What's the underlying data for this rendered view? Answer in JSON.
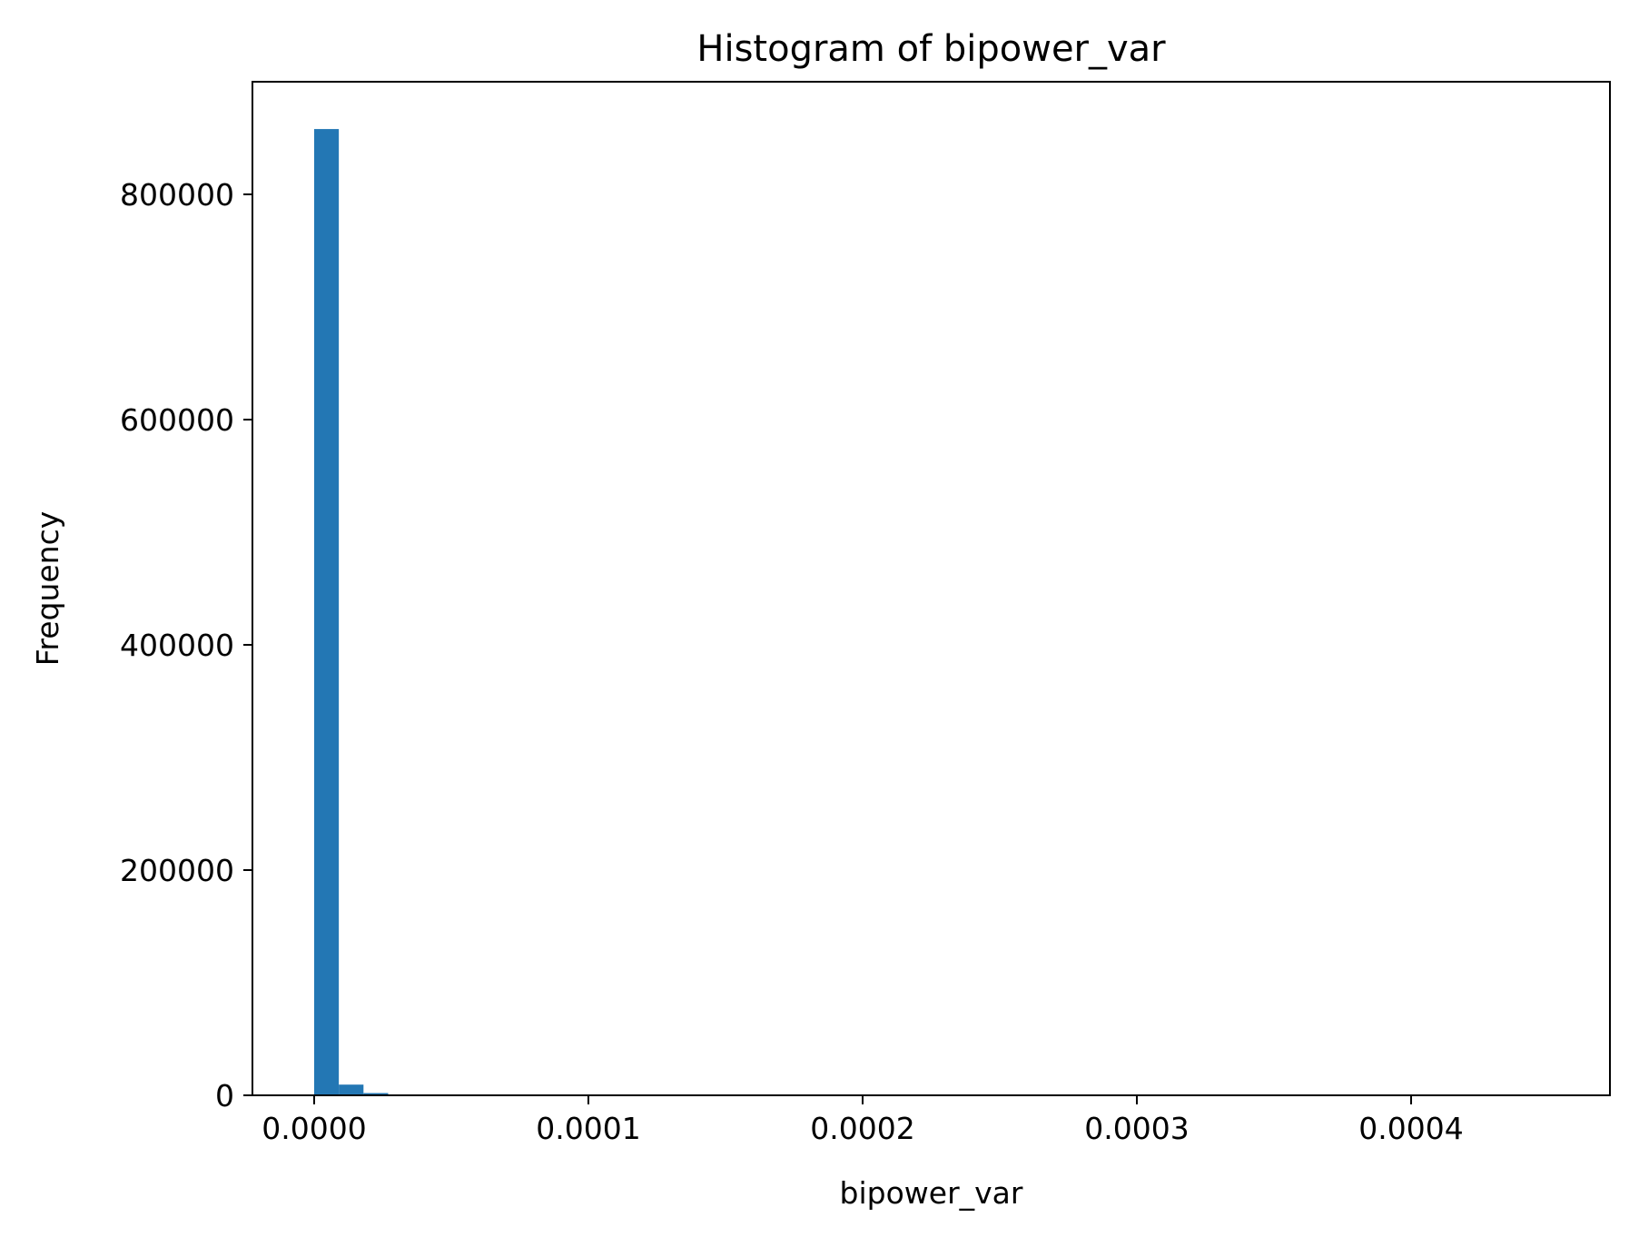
{
  "chart_data": {
    "type": "bar",
    "title": "Histogram of bipower_var",
    "xlabel": "bipower_var",
    "ylabel": "Frequency",
    "xlim": [
      -2.25e-05,
      0.0004725
    ],
    "ylim": [
      0,
      900000
    ],
    "xticks": [
      0,
      0.0001,
      0.0002,
      0.0003,
      0.0004
    ],
    "xtick_labels": [
      "0.0000",
      "0.0001",
      "0.0002",
      "0.0003",
      "0.0004"
    ],
    "yticks": [
      0,
      200000,
      400000,
      600000,
      800000
    ],
    "ytick_labels": [
      "0",
      "200000",
      "400000",
      "600000",
      "800000"
    ],
    "bin_width": 9e-06,
    "bins": [
      {
        "x0": 0.0,
        "x1": 9e-06,
        "count": 858000
      },
      {
        "x0": 9e-06,
        "x1": 1.8e-05,
        "count": 9500
      },
      {
        "x0": 1.8e-05,
        "x1": 2.7e-05,
        "count": 2000
      },
      {
        "x0": 2.7e-05,
        "x1": 3.6e-05,
        "count": 600
      },
      {
        "x0": 3.6e-05,
        "x1": 4.5e-05,
        "count": 250
      }
    ],
    "bar_color": "#2377b4",
    "grid": false,
    "legend": "none"
  }
}
